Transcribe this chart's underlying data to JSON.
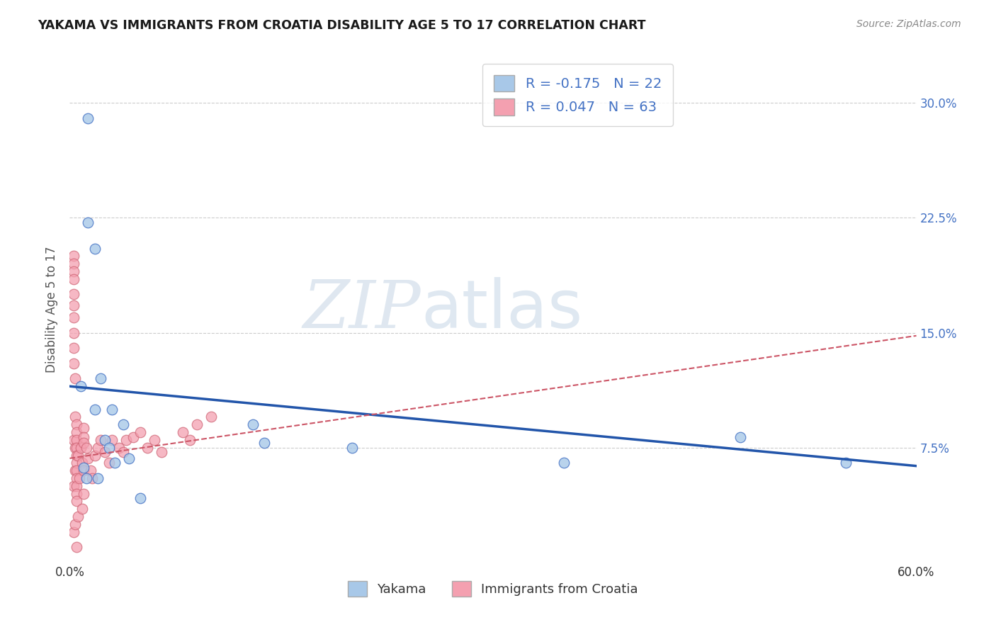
{
  "title": "YAKAMA VS IMMIGRANTS FROM CROATIA DISABILITY AGE 5 TO 17 CORRELATION CHART",
  "source": "Source: ZipAtlas.com",
  "ylabel": "Disability Age 5 to 17",
  "xlim": [
    0,
    0.6
  ],
  "ylim": [
    0,
    0.33
  ],
  "xticks": [
    0.0,
    0.15,
    0.3,
    0.45,
    0.6
  ],
  "xtick_labels": [
    "0.0%",
    "",
    "",
    "",
    "60.0%"
  ],
  "yticks": [
    0.0,
    0.075,
    0.15,
    0.225,
    0.3
  ],
  "ytick_right_labels": [
    "",
    "7.5%",
    "15.0%",
    "22.5%",
    "30.0%"
  ],
  "yakama_x": [
    0.008,
    0.013,
    0.013,
    0.018,
    0.018,
    0.022,
    0.025,
    0.028,
    0.03,
    0.032,
    0.038,
    0.042,
    0.05,
    0.13,
    0.138,
    0.2,
    0.35,
    0.475,
    0.55,
    0.01,
    0.012,
    0.02
  ],
  "yakama_y": [
    0.115,
    0.29,
    0.222,
    0.205,
    0.1,
    0.12,
    0.08,
    0.075,
    0.1,
    0.065,
    0.09,
    0.068,
    0.042,
    0.09,
    0.078,
    0.075,
    0.065,
    0.082,
    0.065,
    0.062,
    0.055,
    0.055
  ],
  "croatia_x": [
    0.003,
    0.003,
    0.003,
    0.003,
    0.003,
    0.003,
    0.003,
    0.003,
    0.003,
    0.003,
    0.003,
    0.003,
    0.003,
    0.004,
    0.004,
    0.004,
    0.004,
    0.004,
    0.005,
    0.005,
    0.005,
    0.005,
    0.005,
    0.005,
    0.005,
    0.005,
    0.005,
    0.005,
    0.005,
    0.005,
    0.006,
    0.006,
    0.007,
    0.008,
    0.009,
    0.009,
    0.01,
    0.01,
    0.01,
    0.01,
    0.01,
    0.012,
    0.013,
    0.015,
    0.016,
    0.018,
    0.02,
    0.022,
    0.025,
    0.028,
    0.03,
    0.035,
    0.038,
    0.04,
    0.045,
    0.05,
    0.055,
    0.06,
    0.065,
    0.08,
    0.085,
    0.09,
    0.1
  ],
  "croatia_y": [
    0.2,
    0.195,
    0.19,
    0.185,
    0.175,
    0.168,
    0.16,
    0.15,
    0.14,
    0.13,
    0.08,
    0.05,
    0.02,
    0.12,
    0.095,
    0.075,
    0.06,
    0.025,
    0.09,
    0.085,
    0.08,
    0.075,
    0.07,
    0.065,
    0.06,
    0.055,
    0.05,
    0.045,
    0.04,
    0.01,
    0.07,
    0.03,
    0.055,
    0.075,
    0.065,
    0.035,
    0.088,
    0.082,
    0.078,
    0.06,
    0.045,
    0.075,
    0.068,
    0.06,
    0.055,
    0.07,
    0.075,
    0.08,
    0.072,
    0.065,
    0.08,
    0.075,
    0.072,
    0.08,
    0.082,
    0.085,
    0.075,
    0.08,
    0.072,
    0.085,
    0.08,
    0.09,
    0.095
  ],
  "yakama_color": "#a8c8e8",
  "yakama_edge": "#4472c4",
  "croatia_color": "#f4a0b0",
  "croatia_edge": "#d06878",
  "trendline_yakama_color": "#2255aa",
  "trendline_croatia_color": "#cc5566",
  "yakama_trendline_x0": 0.0,
  "yakama_trendline_y0": 0.115,
  "yakama_trendline_x1": 0.6,
  "yakama_trendline_y1": 0.063,
  "croatia_trendline_x0": 0.0,
  "croatia_trendline_y0": 0.068,
  "croatia_trendline_x1": 0.6,
  "croatia_trendline_y1": 0.148,
  "legend_label1": "Yakama",
  "legend_label2": "Immigrants from Croatia",
  "R_yakama": -0.175,
  "N_yakama": 22,
  "R_croatia": 0.047,
  "N_croatia": 63,
  "watermark_zip": "ZIP",
  "watermark_atlas": "atlas"
}
